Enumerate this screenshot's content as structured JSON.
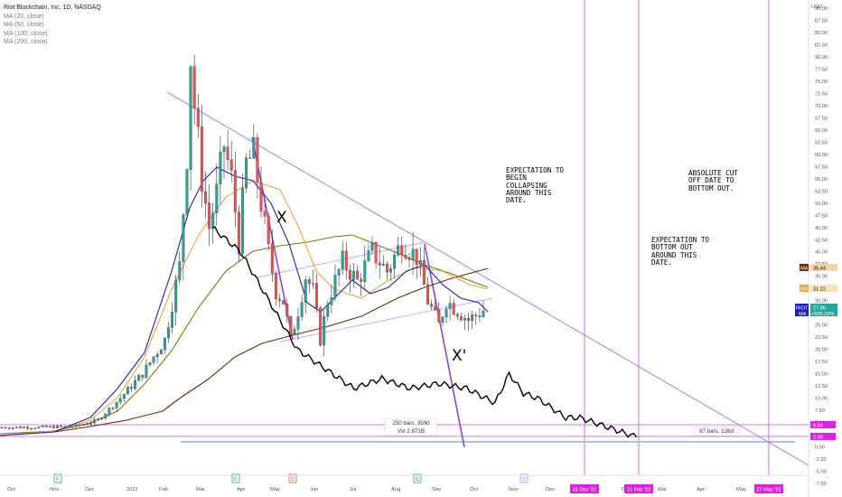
{
  "legend": {
    "symbol": "Riot Blockchain, Inc, 1D, NASDAQ",
    "indicators": [
      "MA (20, close)",
      "MA (50, close)",
      "MA (100, close)",
      "MA (200, close)"
    ]
  },
  "annotations": {
    "x_label": "X",
    "x_prime_label": "X'",
    "note1": "EXPECTATION TO\nBEGIN\nCOLLAPSING\nAROUND THIS\nDATE.",
    "note2": "ABSOLUTE CUT\nOFF DATE TO\nBOTTOM OUT.",
    "note3": "EXPECTATION TO\nBOTTOM OUT\nAROUND THIS\nDATE.",
    "range1_line1": "250 bars, 359d",
    "range1_line2": "Vol 2.871B",
    "range2": "87 bars, 126d"
  },
  "price_tags": {
    "ma100": "35.44",
    "ma50": "31.22",
    "riot_symbol": "RIOT",
    "riot_price": "27.85",
    "ma_label": "MA",
    "ma_change": "+935.32%",
    "low1": "6.34",
    "low2": "2.00"
  },
  "event_markers": [
    "E",
    "E",
    "E",
    "E",
    "E"
  ],
  "date_tags": [
    "31 Dec '21",
    "21 Feb '22",
    "27 May '22"
  ],
  "colors": {
    "ma20": "#1f1fb8",
    "ma50": "#f0a040",
    "ma100": "#7a7a10",
    "ma200": "#6b2a00",
    "trend": "#9b6bff",
    "magenta": "#e020e0",
    "candle_up": "#26a69a",
    "candle_down": "#ef5350",
    "projection": "#000000"
  },
  "chart_data": {
    "type": "candlestick",
    "title": "Riot Blockchain, Inc, 1D, NASDAQ",
    "currency": "USD",
    "y_ticks": [
      "90.00",
      "87.50",
      "85.00",
      "82.50",
      "80.00",
      "77.50",
      "75.00",
      "72.50",
      "70.00",
      "67.50",
      "65.00",
      "62.50",
      "60.00",
      "57.50",
      "55.00",
      "52.50",
      "50.00",
      "47.50",
      "45.00",
      "42.50",
      "40.00",
      "37.50",
      "35.00",
      "32.50",
      "30.00",
      "27.50",
      "25.00",
      "22.50",
      "20.00",
      "17.50",
      "15.00",
      "12.50",
      "10.00",
      "7.50",
      "5.00",
      "2.50",
      "0.00",
      "-2.50",
      "-5.00",
      "-7.50"
    ],
    "ylim": [
      -7.5,
      90
    ],
    "x_ticks": [
      "Oct",
      "Nov",
      "Dec",
      "2021",
      "Feb",
      "Mar",
      "Apr",
      "May",
      "Jun",
      "Jul",
      "Aug",
      "Sep",
      "Oct",
      "Nov",
      "Dec",
      "Fe",
      "Mar",
      "Apr",
      "May"
    ],
    "price_path": [
      [
        0,
        4
      ],
      [
        10,
        4
      ],
      [
        20,
        4.2
      ],
      [
        26,
        5.5
      ],
      [
        32,
        10
      ],
      [
        38,
        15
      ],
      [
        44,
        22
      ],
      [
        48,
        37
      ],
      [
        50,
        60
      ],
      [
        51,
        80
      ],
      [
        52,
        70
      ],
      [
        54,
        55
      ],
      [
        56,
        45
      ],
      [
        58,
        52
      ],
      [
        60,
        62
      ],
      [
        62,
        55
      ],
      [
        64,
        42
      ],
      [
        66,
        58
      ],
      [
        68,
        60
      ],
      [
        70,
        50
      ],
      [
        72,
        40
      ],
      [
        74,
        32
      ],
      [
        76,
        30
      ],
      [
        78,
        22
      ],
      [
        80,
        28
      ],
      [
        82,
        35
      ],
      [
        84,
        32
      ],
      [
        86,
        22
      ],
      [
        88,
        30
      ],
      [
        92,
        38
      ],
      [
        96,
        34
      ],
      [
        100,
        40
      ],
      [
        104,
        36
      ],
      [
        108,
        42
      ],
      [
        112,
        39
      ],
      [
        115,
        30
      ],
      [
        118,
        25
      ],
      [
        120,
        30
      ],
      [
        123,
        28
      ],
      [
        126,
        26
      ],
      [
        130,
        28
      ]
    ],
    "projection_path": [
      [
        0,
        45
      ],
      [
        10,
        40
      ],
      [
        20,
        30
      ],
      [
        30,
        20
      ],
      [
        40,
        16
      ],
      [
        50,
        12
      ],
      [
        60,
        14
      ],
      [
        70,
        12
      ],
      [
        80,
        13
      ],
      [
        90,
        12
      ],
      [
        100,
        9
      ],
      [
        105,
        15
      ],
      [
        110,
        11
      ],
      [
        115,
        10
      ],
      [
        120,
        8
      ],
      [
        125,
        6
      ],
      [
        130,
        6
      ],
      [
        135,
        5
      ],
      [
        140,
        4
      ],
      [
        145,
        3
      ],
      [
        150,
        2
      ]
    ],
    "ma_values": {
      "ma100": 35.44,
      "ma50": 31.22,
      "price": 27.85
    }
  }
}
